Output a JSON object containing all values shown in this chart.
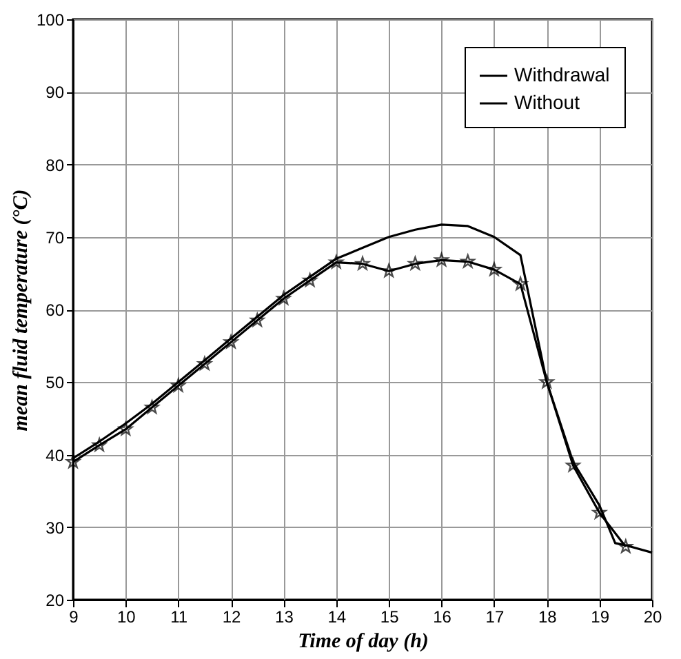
{
  "chart_data": {
    "type": "line",
    "xlabel": "Time of day (h)",
    "ylabel": "mean fluid temperature  (°C)",
    "xlim": [
      9,
      20
    ],
    "xticks": [
      9,
      10,
      11,
      12,
      13,
      14,
      15,
      16,
      17,
      18,
      19,
      20
    ],
    "ylim": [
      20,
      100
    ],
    "yticks": [
      20,
      30,
      40,
      50,
      60,
      70,
      80,
      90,
      100
    ],
    "grid": true,
    "legend": "top right",
    "series": [
      {
        "name": "Withdrawal",
        "color": "#000000",
        "marker": "none",
        "x": [
          9,
          9.5,
          10,
          10.5,
          11,
          11.5,
          12,
          12.5,
          13,
          13.5,
          14,
          14.5,
          15,
          15.5,
          16,
          16.5,
          17,
          17.5,
          18,
          18.5,
          19,
          19.3,
          19.5,
          20
        ],
        "values": [
          39.5,
          41.8,
          44.3,
          47,
          50,
          53,
          56,
          59,
          62,
          64.5,
          67,
          68.5,
          70,
          71,
          71.7,
          71.5,
          70,
          67.5,
          50,
          39,
          33,
          27.8,
          27.5,
          26.5
        ]
      },
      {
        "name": "Without",
        "color": "#000000",
        "marker": "star",
        "x": [
          9,
          9.5,
          10,
          10.5,
          11,
          11.5,
          12,
          12.5,
          13,
          13.5,
          14,
          14.5,
          15,
          15.5,
          16,
          16.5,
          17,
          17.5,
          18,
          18.5,
          19,
          19.5
        ],
        "values": [
          39,
          41.3,
          43.5,
          46.5,
          49.5,
          52.5,
          55.5,
          58.5,
          61.5,
          64,
          66.5,
          66.3,
          65.3,
          66.3,
          66.8,
          66.6,
          65.5,
          63.5,
          50,
          38.5,
          32,
          27.3
        ]
      }
    ]
  }
}
